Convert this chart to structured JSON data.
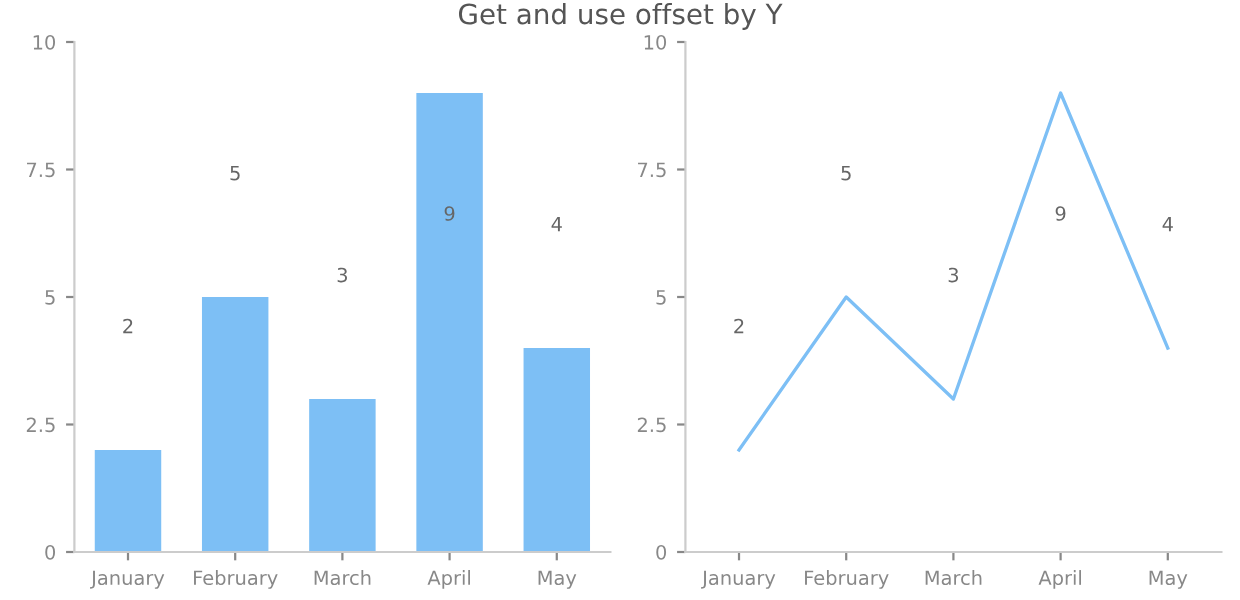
{
  "chart_data": [
    {
      "type": "bar",
      "title": "Get and use offset by Y",
      "categories": [
        "January",
        "February",
        "March",
        "April",
        "May"
      ],
      "series": [
        {
          "color": "#7dbff5",
          "values": [
            2,
            5,
            3,
            9,
            4
          ]
        }
      ],
      "ylim": [
        0,
        10
      ],
      "yticks": [
        0,
        2.5,
        5,
        7.5,
        10
      ],
      "grid": false,
      "legend": false,
      "annotations": [
        "2",
        "5",
        "3",
        "9",
        "4"
      ]
    },
    {
      "type": "line",
      "categories": [
        "January",
        "February",
        "March",
        "April",
        "May"
      ],
      "series": [
        {
          "color": "#7dbff5",
          "values": [
            2,
            5,
            3,
            9,
            4
          ]
        }
      ],
      "ylim": [
        0,
        10
      ],
      "yticks": [
        0,
        2.5,
        5,
        7.5,
        10
      ],
      "grid": false,
      "legend": false,
      "marker": "none",
      "line_style": "solid",
      "annotations": [
        "2",
        "5",
        "3",
        "9",
        "4"
      ]
    }
  ]
}
